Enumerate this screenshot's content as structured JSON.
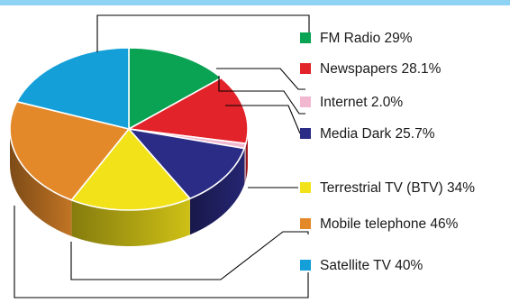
{
  "chart_data": {
    "type": "pie",
    "style": "3d-exploded-pie",
    "legend_placement": "right",
    "categories": [
      "FM Radio",
      "Newspapers",
      "Internet",
      "Media Dark",
      "Terrestrial TV (BTV)",
      "Mobile telephone",
      "Satellite TV"
    ],
    "values": [
      29,
      28.1,
      2.0,
      25.7,
      34,
      46,
      40
    ],
    "labels": [
      "FM Radio 29%",
      "Newspapers 28.1%",
      "Internet 2.0%",
      "Media Dark 25.7%",
      "Terrestrial TV (BTV) 34%",
      "Mobile telephone 46%",
      "Satellite TV 40%"
    ],
    "colors": [
      "#0aa353",
      "#e2232a",
      "#f2b8cf",
      "#2b2c86",
      "#f2e21a",
      "#e3892a",
      "#149fd8"
    ]
  }
}
